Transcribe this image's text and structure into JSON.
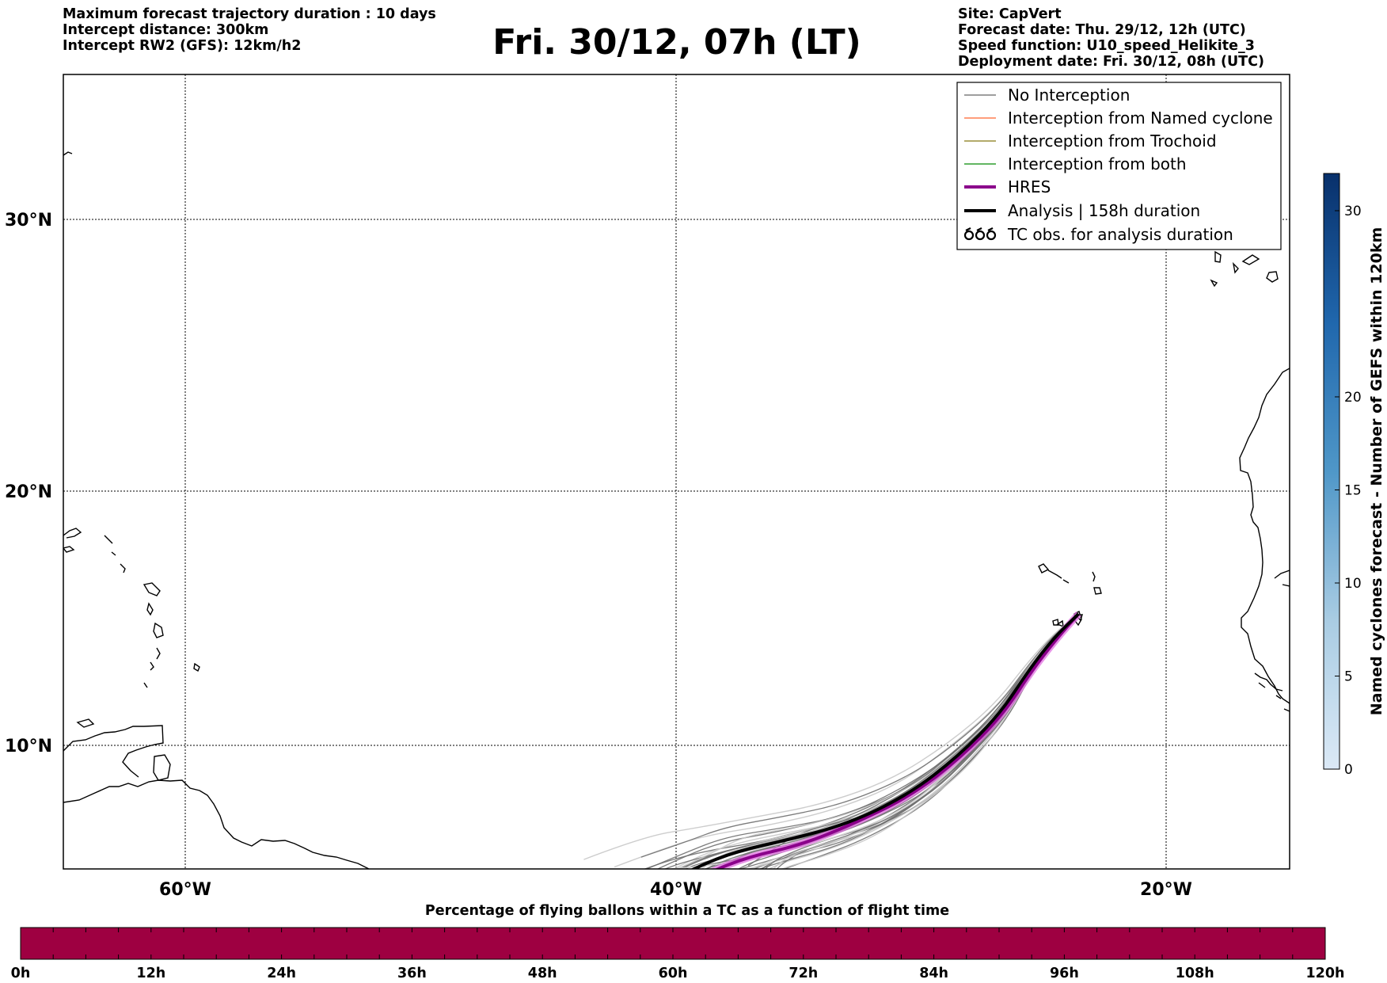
{
  "header": {
    "left_lines": [
      "Maximum forecast trajectory duration : 10 days",
      "Intercept distance: 300km",
      "Intercept RW2 (GFS):  12km/h2"
    ],
    "title": "Fri. 30/12, 07h (LT)",
    "right_lines": [
      "Site: CapVert",
      "Forecast date: Thu. 29/12, 12h (UTC)",
      "Speed function: U10_speed_Helikite_3",
      "Deployment date: Fri. 30/12, 08h (UTC)"
    ]
  },
  "map": {
    "lat_range": [
      4.7,
      34.2
    ],
    "lon_range": [
      -65,
      -15
    ],
    "lat_labels": [
      "30°N",
      "20°N",
      "10°N"
    ],
    "lon_labels": [
      "60°W",
      "40°W",
      "20°W"
    ],
    "lat_values": [
      30,
      20,
      10
    ],
    "lon_values": [
      -60,
      -40,
      -20
    ],
    "launch_site": [
      -23.6,
      15.0
    ]
  },
  "legend": {
    "items": [
      {
        "label": "No Interception",
        "color": "#7f7f7f"
      },
      {
        "label": "Interception from Named cyclone",
        "color": "#ff7f50"
      },
      {
        "label": "Interception from Trochoid",
        "color": "#9a8f3a"
      },
      {
        "label": "Interception from both",
        "color": "#2e9e2e"
      },
      {
        "label": "HRES",
        "color": "#8b008b"
      },
      {
        "label": "Analysis | 158h duration",
        "color": "#000000"
      },
      {
        "label": "TC obs. for analysis duration",
        "icon": "cyclone-symbols-icon"
      }
    ]
  },
  "colorbar": {
    "label": "Named cyclones forecast - Number of GEFS within 120km",
    "min": 0,
    "max": 32,
    "ticks": [
      0,
      5,
      10,
      15,
      20,
      30
    ]
  },
  "time_bar": {
    "title": "Percentage of flying ballons within a TC as a function of flight time",
    "fill_color": "#9e0041",
    "ticks": [
      "0h",
      "12h",
      "24h",
      "36h",
      "48h",
      "60h",
      "72h",
      "84h",
      "96h",
      "108h",
      "120h"
    ]
  }
}
